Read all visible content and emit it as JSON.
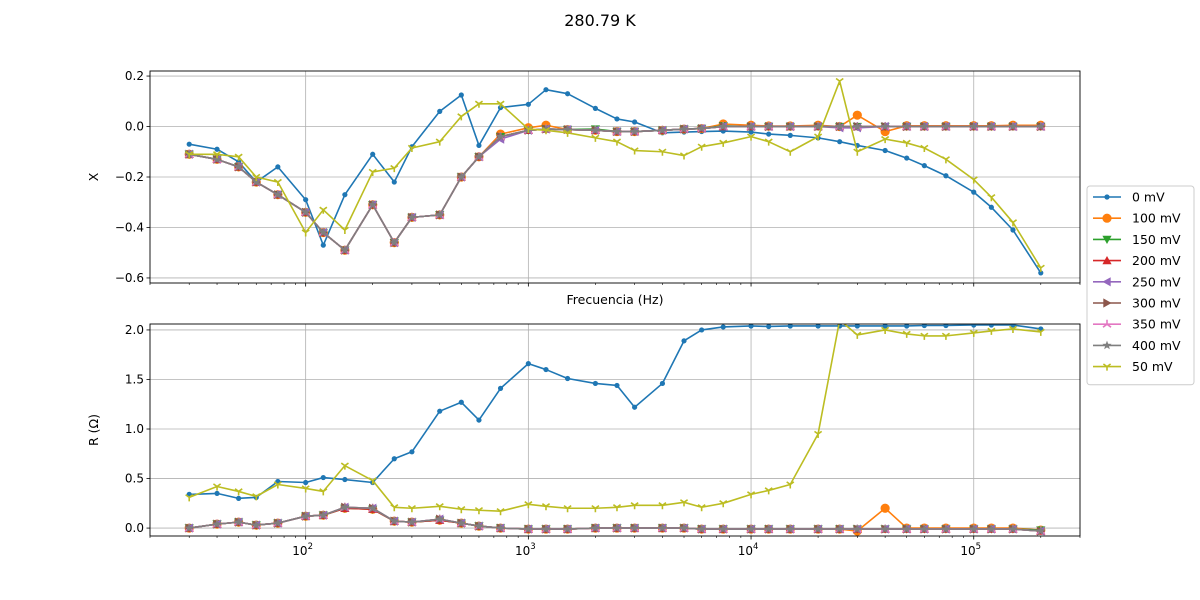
{
  "figure": {
    "title": "280.79 K"
  },
  "chart_data": [
    {
      "type": "line",
      "xscale": "log",
      "xlim": [
        20,
        300000
      ],
      "ylim": [
        -0.62,
        0.22
      ],
      "xlabel": "Frecuencia (Hz)",
      "ylabel": "X",
      "grid": true,
      "x_ticks": [
        {
          "value": 100,
          "label": "10",
          "exp": "2"
        },
        {
          "value": 1000,
          "label": "10",
          "exp": "3"
        },
        {
          "value": 10000,
          "label": "10",
          "exp": "4"
        },
        {
          "value": 100000,
          "label": "10",
          "exp": "5"
        }
      ],
      "x_tick_labels_visible": false,
      "y_ticks": [
        {
          "value": 0.2,
          "label": "0.2"
        },
        {
          "value": 0.0,
          "label": "0.0"
        },
        {
          "value": -0.2,
          "label": "−0.2"
        },
        {
          "value": -0.4,
          "label": "−0.4"
        },
        {
          "value": -0.6,
          "label": "−0.6"
        }
      ],
      "x": [
        30,
        40,
        50,
        60,
        75,
        100,
        120,
        150,
        200,
        250,
        300,
        400,
        500,
        600,
        750,
        1000,
        1200,
        1500,
        2000,
        2500,
        3000,
        4000,
        5000,
        6000,
        7500,
        10000,
        12000,
        15000,
        20000,
        25000,
        30000,
        40000,
        50000,
        60000,
        75000,
        100000,
        120000,
        150000,
        200000
      ],
      "series": [
        {
          "name": "0 mV",
          "color": "#1f77b4",
          "marker": "point",
          "values": [
            -0.07,
            -0.09,
            -0.14,
            -0.22,
            -0.16,
            -0.29,
            -0.47,
            -0.27,
            -0.11,
            -0.22,
            -0.08,
            0.06,
            0.125,
            -0.075,
            0.075,
            0.088,
            0.146,
            0.13,
            0.072,
            0.03,
            0.018,
            -0.025,
            -0.022,
            -0.02,
            -0.018,
            -0.022,
            -0.03,
            -0.035,
            -0.045,
            -0.06,
            -0.075,
            -0.095,
            -0.125,
            -0.155,
            -0.195,
            -0.26,
            -0.32,
            -0.41,
            -0.58
          ]
        },
        {
          "name": "100 mV",
          "color": "#ff7f0e",
          "marker": "circle",
          "values": [
            -0.11,
            -0.13,
            -0.16,
            -0.22,
            -0.27,
            -0.34,
            -0.42,
            -0.49,
            -0.31,
            -0.46,
            -0.36,
            -0.35,
            -0.2,
            -0.12,
            -0.03,
            -0.005,
            0.005,
            -0.012,
            -0.015,
            -0.02,
            -0.02,
            -0.015,
            -0.01,
            -0.008,
            0.01,
            0.005,
            0.002,
            0.002,
            0.005,
            0.0,
            0.045,
            -0.02,
            0.003,
            0.003,
            0.003,
            0.003,
            0.003,
            0.005,
            0.005
          ]
        },
        {
          "name": "150 mV",
          "color": "#2ca02c",
          "marker": "tri-down",
          "values": [
            -0.11,
            -0.13,
            -0.16,
            -0.22,
            -0.27,
            -0.34,
            -0.42,
            -0.49,
            -0.31,
            -0.46,
            -0.36,
            -0.35,
            -0.2,
            -0.12,
            -0.04,
            -0.015,
            -0.01,
            -0.012,
            -0.01,
            -0.02,
            -0.02,
            -0.015,
            -0.01,
            -0.008,
            0.003,
            0.0,
            0.0,
            0.0,
            0.0,
            0.0,
            0.0,
            0.0,
            0.0,
            0.0,
            0.0,
            0.0,
            0.0,
            0.0,
            0.0
          ]
        },
        {
          "name": "200 mV",
          "color": "#d62728",
          "marker": "tri-up",
          "values": [
            -0.11,
            -0.13,
            -0.16,
            -0.22,
            -0.27,
            -0.34,
            -0.42,
            -0.49,
            -0.31,
            -0.46,
            -0.36,
            -0.35,
            -0.2,
            -0.12,
            -0.04,
            -0.015,
            -0.01,
            -0.012,
            -0.015,
            -0.02,
            -0.02,
            -0.015,
            -0.01,
            -0.008,
            0.0,
            0.0,
            0.0,
            0.0,
            0.0,
            0.0,
            0.0,
            0.0,
            0.0,
            0.0,
            0.0,
            0.0,
            0.0,
            0.0,
            0.0
          ]
        },
        {
          "name": "250 mV",
          "color": "#9467bd",
          "marker": "tri-left",
          "values": [
            -0.11,
            -0.13,
            -0.16,
            -0.22,
            -0.27,
            -0.34,
            -0.42,
            -0.49,
            -0.31,
            -0.46,
            -0.36,
            -0.35,
            -0.2,
            -0.12,
            -0.05,
            -0.015,
            -0.01,
            -0.012,
            -0.015,
            -0.02,
            -0.02,
            -0.015,
            -0.01,
            -0.008,
            0.0,
            0.0,
            0.0,
            0.0,
            0.0,
            -0.005,
            -0.005,
            0.0,
            0.0,
            0.0,
            0.0,
            0.0,
            0.0,
            0.0,
            0.0
          ]
        },
        {
          "name": "300 mV",
          "color": "#8c564b",
          "marker": "tri-right",
          "values": [
            -0.11,
            -0.13,
            -0.16,
            -0.22,
            -0.27,
            -0.34,
            -0.42,
            -0.49,
            -0.31,
            -0.46,
            -0.36,
            -0.35,
            -0.2,
            -0.12,
            -0.04,
            -0.015,
            -0.01,
            -0.012,
            -0.015,
            -0.02,
            -0.02,
            -0.015,
            -0.01,
            -0.008,
            0.0,
            0.0,
            0.0,
            0.0,
            0.0,
            0.0,
            0.0,
            0.0,
            0.0,
            0.0,
            0.0,
            0.0,
            0.0,
            0.0,
            0.0
          ]
        },
        {
          "name": "350 mV",
          "color": "#e377c2",
          "marker": "tri-plus",
          "values": [
            -0.11,
            -0.13,
            -0.16,
            -0.22,
            -0.27,
            -0.34,
            -0.42,
            -0.49,
            -0.31,
            -0.46,
            -0.36,
            -0.35,
            -0.2,
            -0.12,
            -0.04,
            -0.015,
            -0.01,
            -0.012,
            -0.015,
            -0.02,
            -0.02,
            -0.015,
            -0.01,
            -0.008,
            0.0,
            0.0,
            0.0,
            0.0,
            0.0,
            0.0,
            0.0,
            0.0,
            0.0,
            0.0,
            0.0,
            0.0,
            0.0,
            0.0,
            0.0
          ]
        },
        {
          "name": "400 mV",
          "color": "#7f7f7f",
          "marker": "star",
          "values": [
            -0.11,
            -0.13,
            -0.16,
            -0.22,
            -0.27,
            -0.34,
            -0.42,
            -0.49,
            -0.31,
            -0.46,
            -0.36,
            -0.35,
            -0.2,
            -0.12,
            -0.04,
            -0.015,
            -0.01,
            -0.012,
            -0.015,
            -0.02,
            -0.02,
            -0.015,
            -0.01,
            -0.008,
            0.0,
            0.0,
            0.0,
            0.0,
            0.0,
            0.0,
            0.0,
            0.0,
            0.0,
            0.0,
            0.0,
            0.0,
            0.0,
            0.0,
            0.0
          ]
        },
        {
          "name": "50 mV",
          "color": "#bcbd22",
          "marker": "tri-down-small",
          "values": [
            -0.11,
            -0.11,
            -0.12,
            -0.2,
            -0.22,
            -0.42,
            -0.33,
            -0.41,
            -0.18,
            -0.165,
            -0.085,
            -0.06,
            0.04,
            0.09,
            0.09,
            -0.01,
            -0.015,
            -0.025,
            -0.045,
            -0.06,
            -0.095,
            -0.1,
            -0.115,
            -0.08,
            -0.065,
            -0.04,
            -0.06,
            -0.1,
            -0.04,
            0.18,
            -0.1,
            -0.05,
            -0.065,
            -0.085,
            -0.13,
            -0.21,
            -0.28,
            -0.38,
            -0.56
          ]
        }
      ]
    },
    {
      "type": "line",
      "xscale": "log",
      "xlim": [
        20,
        300000
      ],
      "ylim": [
        -0.08,
        2.06
      ],
      "xlabel": "",
      "ylabel": "R (Ω)",
      "grid": true,
      "x_ticks": [
        {
          "value": 100,
          "label": "10",
          "exp": "2"
        },
        {
          "value": 1000,
          "label": "10",
          "exp": "3"
        },
        {
          "value": 10000,
          "label": "10",
          "exp": "4"
        },
        {
          "value": 100000,
          "label": "10",
          "exp": "5"
        }
      ],
      "x_tick_labels_visible": true,
      "y_ticks": [
        {
          "value": 0.0,
          "label": "0.0"
        },
        {
          "value": 0.5,
          "label": "0.5"
        },
        {
          "value": 1.0,
          "label": "1.0"
        },
        {
          "value": 1.5,
          "label": "1.5"
        },
        {
          "value": 2.0,
          "label": "2.0"
        }
      ],
      "x": [
        30,
        40,
        50,
        60,
        75,
        100,
        120,
        150,
        200,
        250,
        300,
        400,
        500,
        600,
        750,
        1000,
        1200,
        1500,
        2000,
        2500,
        3000,
        4000,
        5000,
        6000,
        7500,
        10000,
        12000,
        15000,
        20000,
        25000,
        30000,
        40000,
        50000,
        60000,
        75000,
        100000,
        120000,
        150000,
        200000
      ],
      "series": [
        {
          "name": "0 mV",
          "color": "#1f77b4",
          "marker": "point",
          "values": [
            0.34,
            0.35,
            0.3,
            0.31,
            0.47,
            0.46,
            0.51,
            0.49,
            0.46,
            0.7,
            0.77,
            1.18,
            1.27,
            1.09,
            1.41,
            1.66,
            1.6,
            1.51,
            1.46,
            1.44,
            1.22,
            1.46,
            1.89,
            2.0,
            2.03,
            2.04,
            2.035,
            2.04,
            2.04,
            2.04,
            2.04,
            2.04,
            2.04,
            2.045,
            2.045,
            2.05,
            2.05,
            2.05,
            2.01
          ]
        },
        {
          "name": "100 mV",
          "color": "#ff7f0e",
          "marker": "circle",
          "values": [
            0.0,
            0.04,
            0.06,
            0.03,
            0.05,
            0.12,
            0.13,
            0.2,
            0.19,
            0.07,
            0.06,
            0.08,
            0.05,
            0.02,
            0.0,
            -0.01,
            -0.01,
            -0.01,
            0.0,
            0.0,
            0.0,
            0.0,
            0.0,
            -0.01,
            -0.01,
            -0.01,
            -0.01,
            -0.01,
            -0.01,
            -0.01,
            -0.03,
            0.2,
            0.0,
            0.0,
            0.0,
            0.0,
            0.0,
            0.0,
            -0.02
          ]
        },
        {
          "name": "150 mV",
          "color": "#2ca02c",
          "marker": "tri-down",
          "values": [
            0.0,
            0.04,
            0.06,
            0.03,
            0.05,
            0.12,
            0.13,
            0.2,
            0.19,
            0.07,
            0.06,
            0.08,
            0.05,
            0.02,
            0.0,
            -0.01,
            -0.01,
            -0.01,
            0.0,
            0.0,
            0.0,
            0.0,
            0.0,
            -0.01,
            -0.01,
            -0.01,
            -0.01,
            -0.01,
            -0.01,
            -0.01,
            -0.01,
            -0.01,
            -0.01,
            -0.01,
            -0.01,
            -0.01,
            -0.01,
            -0.01,
            -0.02
          ]
        },
        {
          "name": "200 mV",
          "color": "#d62728",
          "marker": "tri-up",
          "values": [
            0.0,
            0.04,
            0.06,
            0.03,
            0.05,
            0.12,
            0.13,
            0.2,
            0.19,
            0.07,
            0.06,
            0.08,
            0.05,
            0.02,
            0.0,
            -0.01,
            -0.01,
            -0.01,
            0.0,
            0.0,
            0.0,
            0.0,
            0.0,
            -0.01,
            -0.01,
            -0.01,
            -0.01,
            -0.01,
            -0.01,
            -0.01,
            -0.01,
            -0.01,
            -0.01,
            -0.01,
            -0.01,
            -0.01,
            -0.01,
            -0.01,
            -0.03
          ]
        },
        {
          "name": "250 mV",
          "color": "#9467bd",
          "marker": "tri-left",
          "values": [
            0.0,
            0.04,
            0.06,
            0.03,
            0.05,
            0.12,
            0.13,
            0.21,
            0.2,
            0.07,
            0.06,
            0.09,
            0.05,
            0.02,
            0.0,
            -0.01,
            -0.01,
            -0.01,
            0.0,
            0.0,
            0.0,
            0.0,
            0.0,
            -0.01,
            -0.01,
            -0.01,
            -0.01,
            -0.01,
            -0.01,
            -0.01,
            -0.01,
            -0.01,
            -0.01,
            -0.01,
            -0.01,
            -0.01,
            -0.01,
            -0.01,
            -0.03
          ]
        },
        {
          "name": "300 mV",
          "color": "#8c564b",
          "marker": "tri-right",
          "values": [
            0.0,
            0.04,
            0.06,
            0.03,
            0.05,
            0.12,
            0.13,
            0.21,
            0.2,
            0.07,
            0.06,
            0.09,
            0.05,
            0.02,
            0.0,
            -0.01,
            -0.01,
            -0.01,
            0.0,
            0.0,
            0.0,
            0.0,
            0.0,
            -0.01,
            -0.01,
            -0.01,
            -0.01,
            -0.01,
            -0.01,
            -0.01,
            -0.01,
            -0.01,
            -0.01,
            -0.01,
            -0.01,
            -0.01,
            -0.01,
            -0.01,
            -0.03
          ]
        },
        {
          "name": "350 mV",
          "color": "#e377c2",
          "marker": "tri-plus",
          "values": [
            0.0,
            0.04,
            0.06,
            0.03,
            0.05,
            0.12,
            0.13,
            0.21,
            0.2,
            0.07,
            0.06,
            0.09,
            0.05,
            0.02,
            0.0,
            -0.01,
            -0.01,
            -0.01,
            0.0,
            0.0,
            0.0,
            0.0,
            0.0,
            -0.01,
            -0.01,
            -0.01,
            -0.01,
            -0.01,
            -0.01,
            -0.01,
            -0.01,
            -0.01,
            -0.01,
            -0.01,
            -0.01,
            -0.01,
            -0.01,
            -0.01,
            -0.03
          ]
        },
        {
          "name": "400 mV",
          "color": "#7f7f7f",
          "marker": "star",
          "values": [
            0.0,
            0.04,
            0.06,
            0.03,
            0.05,
            0.12,
            0.13,
            0.21,
            0.2,
            0.07,
            0.06,
            0.09,
            0.05,
            0.02,
            0.0,
            -0.01,
            -0.01,
            -0.01,
            0.0,
            0.0,
            0.0,
            0.0,
            0.0,
            -0.01,
            -0.01,
            -0.01,
            -0.01,
            -0.01,
            -0.01,
            -0.01,
            -0.01,
            -0.01,
            -0.01,
            -0.01,
            -0.01,
            -0.01,
            -0.01,
            -0.01,
            -0.03
          ]
        },
        {
          "name": "50 mV",
          "color": "#bcbd22",
          "marker": "tri-down-small",
          "values": [
            0.31,
            0.42,
            0.37,
            0.32,
            0.44,
            0.4,
            0.37,
            0.63,
            0.48,
            0.21,
            0.2,
            0.22,
            0.19,
            0.18,
            0.17,
            0.24,
            0.22,
            0.2,
            0.2,
            0.21,
            0.23,
            0.23,
            0.26,
            0.21,
            0.25,
            0.34,
            0.38,
            0.44,
            0.95,
            2.1,
            1.95,
            2.0,
            1.96,
            1.94,
            1.94,
            1.97,
            1.99,
            2.01,
            1.98
          ]
        }
      ]
    }
  ],
  "legend": {
    "placement": "center-right",
    "entries": [
      "0 mV",
      "100 mV",
      "150 mV",
      "200 mV",
      "250 mV",
      "300 mV",
      "350 mV",
      "400 mV",
      "50 mV"
    ]
  }
}
